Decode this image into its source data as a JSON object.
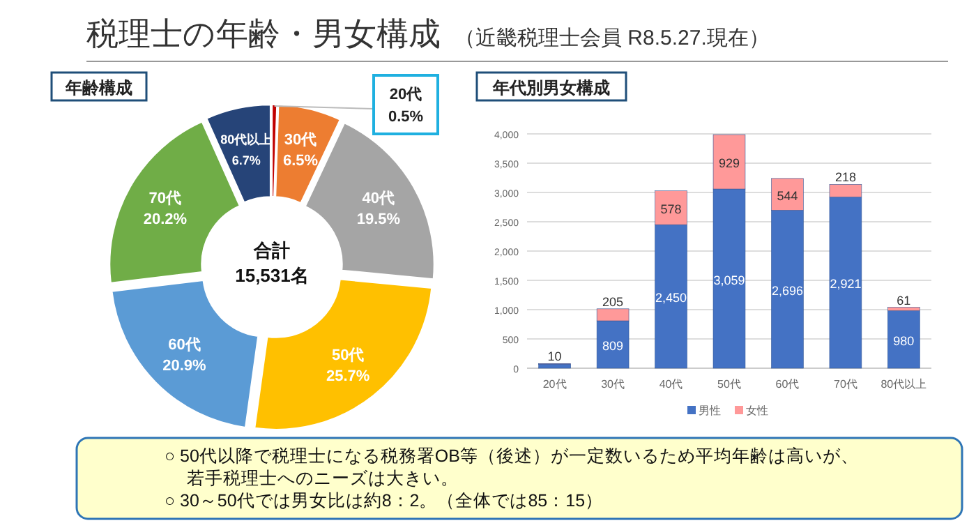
{
  "chart_data": [
    {
      "type": "other",
      "title": "税理士の年齢・男女構成",
      "subtitle": "（近畿税理士会員 R8.5.27.現在）",
      "annotations": [
        "○ 50代以降で税理士になる税務署OB等（後述）が一定数いるため平均年齢は高いが、",
        "若手税理士へのニーズは大きい。",
        "○ 30～50代では男女比は約8：2。（全体では85：15）"
      ]
    },
    {
      "type": "donut",
      "title": "年齢構成",
      "categories": [
        "20代",
        "30代",
        "40代",
        "50代",
        "60代",
        "70代",
        "80代以上"
      ],
      "values": [
        0.5,
        6.5,
        19.5,
        25.7,
        20.9,
        20.2,
        6.7
      ],
      "colors": [
        "#c00000",
        "#ed7d31",
        "#a5a5a5",
        "#ffc000",
        "#5b9bd5",
        "#70ad47",
        "#264478"
      ],
      "value_labels": [
        "0.5%",
        "6.5%",
        "19.5%",
        "25.7%",
        "20.9%",
        "20.2%",
        "6.7%"
      ],
      "annotations": [
        "合計",
        "15,531名"
      ]
    },
    {
      "type": "bar",
      "title": "年代別男女構成",
      "stacked": true,
      "categories": [
        "20代",
        "30代",
        "40代",
        "50代",
        "60代",
        "70代",
        "80代以上"
      ],
      "series": [
        {
          "name": "男性",
          "color": "#4472c4",
          "values": [
            70,
            809,
            2450,
            3059,
            2696,
            2921,
            980
          ],
          "value_labels": [
            null,
            "809",
            "2,450",
            "3,059",
            "2,696",
            "2,921",
            "980"
          ]
        },
        {
          "name": "女性",
          "color": "#ff9999",
          "values": [
            10,
            205,
            578,
            929,
            544,
            218,
            61
          ],
          "value_labels": [
            "10",
            "205",
            "578",
            "929",
            "544",
            "218",
            "61"
          ]
        }
      ],
      "ylim": [
        0,
        4000
      ],
      "yticks": [
        0,
        {
          "value": 500,
          "label": "500"
        },
        {
          "value": 1000,
          "label": "1,000"
        },
        {
          "value": 1500,
          "label": "1,500"
        },
        {
          "value": 2000,
          "label": "2,000"
        },
        {
          "value": 2500,
          "label": "2,500"
        },
        {
          "value": 3000,
          "label": "3,000"
        },
        {
          "value": 3500,
          "label": "3,500"
        },
        {
          "value": 4000,
          "label": "4,000"
        }
      ],
      "grid": "y",
      "legend": "bottom"
    }
  ]
}
